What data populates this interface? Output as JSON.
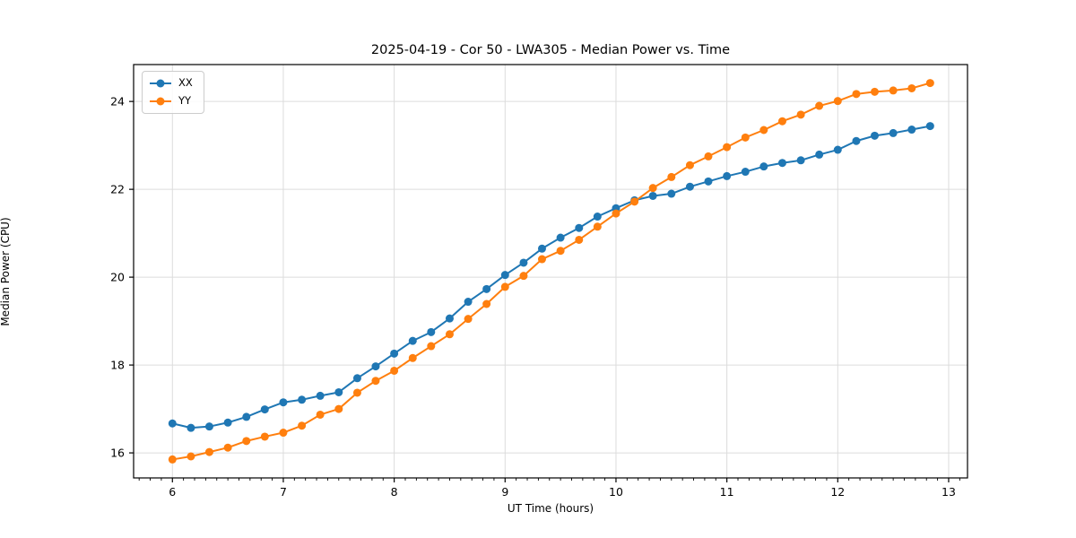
{
  "chart_data": {
    "type": "line",
    "title": "2025-04-19 - Cor 50 - LWA305 - Median Power vs. Time",
    "xlabel": "UT Time (hours)",
    "ylabel": "Median Power (CPU)",
    "xlim": [
      5.65,
      13.17
    ],
    "ylim": [
      15.43,
      24.84
    ],
    "x_ticks": [
      6,
      7,
      8,
      9,
      10,
      11,
      12,
      13
    ],
    "y_ticks": [
      16,
      18,
      20,
      22,
      24
    ],
    "x_minor_tick_step": 0.1,
    "grid": true,
    "legend_position": "upper left",
    "marker": "circle",
    "x": [
      6.0,
      6.167,
      6.333,
      6.5,
      6.667,
      6.833,
      7.0,
      7.167,
      7.333,
      7.5,
      7.667,
      7.833,
      8.0,
      8.167,
      8.333,
      8.5,
      8.667,
      8.833,
      9.0,
      9.167,
      9.333,
      9.5,
      9.667,
      9.833,
      10.0,
      10.167,
      10.333,
      10.5,
      10.667,
      10.833,
      11.0,
      11.167,
      11.333,
      11.5,
      11.667,
      11.833,
      12.0,
      12.167,
      12.333,
      12.5,
      12.667,
      12.833
    ],
    "series": [
      {
        "name": "XX",
        "color": "#1f77b4",
        "values": [
          16.67,
          16.57,
          16.6,
          16.69,
          16.82,
          16.99,
          17.15,
          17.21,
          17.3,
          17.38,
          17.7,
          17.97,
          18.26,
          18.55,
          18.75,
          19.06,
          19.44,
          19.73,
          20.05,
          20.33,
          20.65,
          20.9,
          21.12,
          21.38,
          21.57,
          21.75,
          21.85,
          21.9,
          22.06,
          22.18,
          22.3,
          22.4,
          22.52,
          22.6,
          22.66,
          22.79,
          22.9,
          23.1,
          23.22,
          23.28,
          23.36,
          23.44
        ]
      },
      {
        "name": "YY",
        "color": "#ff7f0e",
        "values": [
          15.85,
          15.92,
          16.02,
          16.12,
          16.27,
          16.37,
          16.46,
          16.62,
          16.87,
          17.0,
          17.37,
          17.64,
          17.87,
          18.16,
          18.43,
          18.7,
          19.05,
          19.39,
          19.78,
          20.03,
          20.41,
          20.6,
          20.85,
          21.15,
          21.45,
          21.72,
          22.03,
          22.28,
          22.55,
          22.75,
          22.96,
          23.18,
          23.35,
          23.55,
          23.7,
          23.9,
          24.01,
          24.17,
          24.22,
          24.25,
          24.3,
          24.42
        ]
      }
    ]
  }
}
